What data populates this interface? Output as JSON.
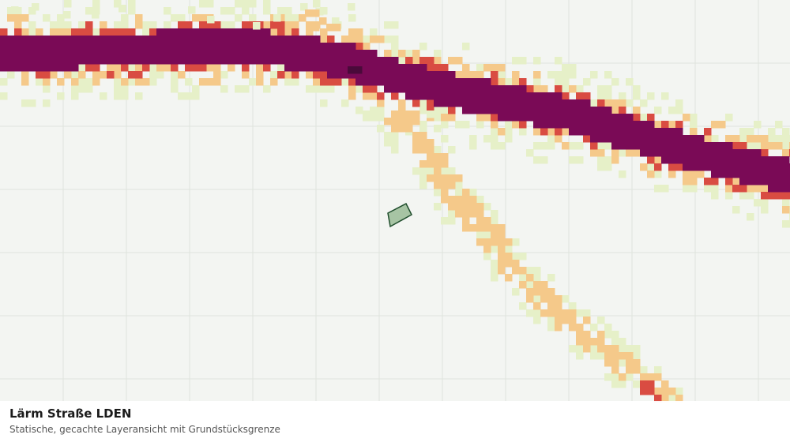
{
  "legend": {
    "title": "Lärm Straße LDEN",
    "subtitle": "Statische, gecachte Layeransicht mit Grundstücksgrenze"
  },
  "map": {
    "grid_color": "#dfe3dd",
    "background_color": "#f3f5f2",
    "noise_class_colors": [
      "#e6f0c8",
      "#f5c98a",
      "#d94c42",
      "#7a0a56",
      "#4a0a3a"
    ],
    "parcel_fill": "#a7c4a4",
    "parcel_stroke": "#1f4d2c"
  }
}
